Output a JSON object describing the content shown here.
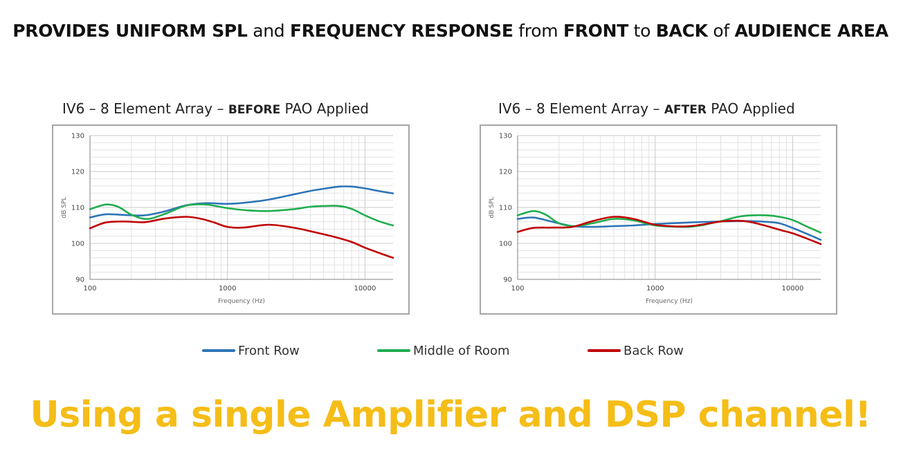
{
  "headline": {
    "w1": "PROVIDES UNIFORM SPL",
    "w2": " and ",
    "w3": "FREQUENCY RESPONSE",
    "w4": " from ",
    "w5": "FRONT",
    "w6": " to ",
    "w7": "BACK",
    "w8": " of ",
    "w9": "AUDIENCE AREA"
  },
  "charts": [
    {
      "title_prefix": "IV6 – 8 Element Array – ",
      "title_strong": "BEFORE",
      "title_suffix": " PAO Applied"
    },
    {
      "title_prefix": "IV6 – 8 Element Array – ",
      "title_strong": "AFTER",
      "title_suffix": " PAO Applied"
    }
  ],
  "legend": [
    {
      "label": "Front Row",
      "color": "#2e75b6"
    },
    {
      "label": "Middle of Room",
      "color": "#1fad4f"
    },
    {
      "label": "Back Row",
      "color": "#c00000"
    }
  ],
  "tagline": "Using a single Amplifier and DSP channel!",
  "chart_data": [
    {
      "type": "line",
      "xlabel": "Frequency (Hz)",
      "ylabel": "dB SPL",
      "xscale": "log",
      "xlim": [
        100,
        16000
      ],
      "ylim": [
        90,
        130
      ],
      "xticks": [
        100,
        1000,
        10000
      ],
      "xtick_labels": [
        "100",
        "1000",
        "10000"
      ],
      "yticks": [
        90,
        100,
        110,
        120,
        130
      ],
      "ytick_labels": [
        "90",
        "100",
        "110",
        "120",
        "130"
      ],
      "grid": true,
      "series": [
        {
          "name": "Front Row",
          "color": "#2e75b6",
          "x": [
            100,
            130,
            180,
            250,
            350,
            500,
            700,
            1000,
            1400,
            2000,
            3000,
            4000,
            5000,
            6500,
            8000,
            10000,
            12500,
            16000
          ],
          "y": [
            107.2,
            108.1,
            107.9,
            107.8,
            108.9,
            110.6,
            111.2,
            111.0,
            111.4,
            112.2,
            113.6,
            114.6,
            115.2,
            115.8,
            115.8,
            115.3,
            114.6,
            113.9
          ]
        },
        {
          "name": "Middle of Room",
          "color": "#1fad4f",
          "x": [
            100,
            130,
            160,
            200,
            260,
            350,
            500,
            700,
            1000,
            1400,
            2000,
            3000,
            4000,
            5000,
            6500,
            8000,
            10000,
            13000,
            16000
          ],
          "y": [
            109.5,
            110.8,
            110.2,
            108.0,
            106.8,
            108.2,
            110.5,
            110.8,
            109.8,
            109.2,
            109.0,
            109.5,
            110.2,
            110.4,
            110.4,
            109.6,
            107.8,
            106.0,
            105.0
          ]
        },
        {
          "name": "Back Row",
          "color": "#c00000",
          "x": [
            100,
            130,
            180,
            250,
            350,
            500,
            650,
            800,
            1000,
            1300,
            2000,
            3000,
            4000,
            6000,
            8000,
            10000,
            13000,
            16000
          ],
          "y": [
            104.2,
            105.8,
            106.1,
            105.9,
            106.9,
            107.4,
            106.8,
            105.8,
            104.6,
            104.4,
            105.2,
            104.4,
            103.4,
            101.8,
            100.4,
            98.8,
            97.2,
            96.0
          ]
        }
      ]
    },
    {
      "type": "line",
      "xlabel": "Frequency (Hz)",
      "ylabel": "dB SPL",
      "xscale": "log",
      "xlim": [
        100,
        16000
      ],
      "ylim": [
        90,
        130
      ],
      "xticks": [
        100,
        1000,
        10000
      ],
      "xtick_labels": [
        "100",
        "1000",
        "10000"
      ],
      "yticks": [
        90,
        100,
        110,
        120,
        130
      ],
      "ytick_labels": [
        "90",
        "100",
        "110",
        "120",
        "130"
      ],
      "grid": true,
      "series": [
        {
          "name": "Front Row",
          "color": "#2e75b6",
          "x": [
            100,
            130,
            180,
            250,
            350,
            500,
            700,
            1000,
            1500,
            2000,
            3000,
            4000,
            5000,
            6500,
            8000,
            10000,
            13000,
            16000
          ],
          "y": [
            106.8,
            107.2,
            106.0,
            104.8,
            104.6,
            104.8,
            105.0,
            105.4,
            105.7,
            105.9,
            106.1,
            106.2,
            106.2,
            106.0,
            105.6,
            104.3,
            102.5,
            101.0
          ]
        },
        {
          "name": "Middle of Room",
          "color": "#1fad4f",
          "x": [
            100,
            130,
            160,
            200,
            260,
            350,
            500,
            700,
            1000,
            1500,
            2000,
            3000,
            4000,
            5000,
            6500,
            8000,
            10000,
            13000,
            16000
          ],
          "y": [
            107.8,
            109.0,
            108.0,
            105.6,
            104.8,
            105.6,
            106.8,
            106.4,
            105.0,
            104.6,
            104.8,
            106.2,
            107.4,
            107.8,
            107.8,
            107.4,
            106.5,
            104.5,
            103.0
          ]
        },
        {
          "name": "Back Row",
          "color": "#c00000",
          "x": [
            100,
            130,
            180,
            250,
            350,
            500,
            700,
            1000,
            1500,
            2000,
            3000,
            4000,
            5000,
            6500,
            8000,
            10000,
            13000,
            16000
          ],
          "y": [
            103.2,
            104.3,
            104.4,
            104.6,
            106.2,
            107.4,
            106.8,
            105.2,
            104.7,
            105.0,
            106.1,
            106.3,
            105.9,
            104.8,
            103.8,
            102.8,
            101.2,
            99.8
          ]
        }
      ]
    }
  ]
}
